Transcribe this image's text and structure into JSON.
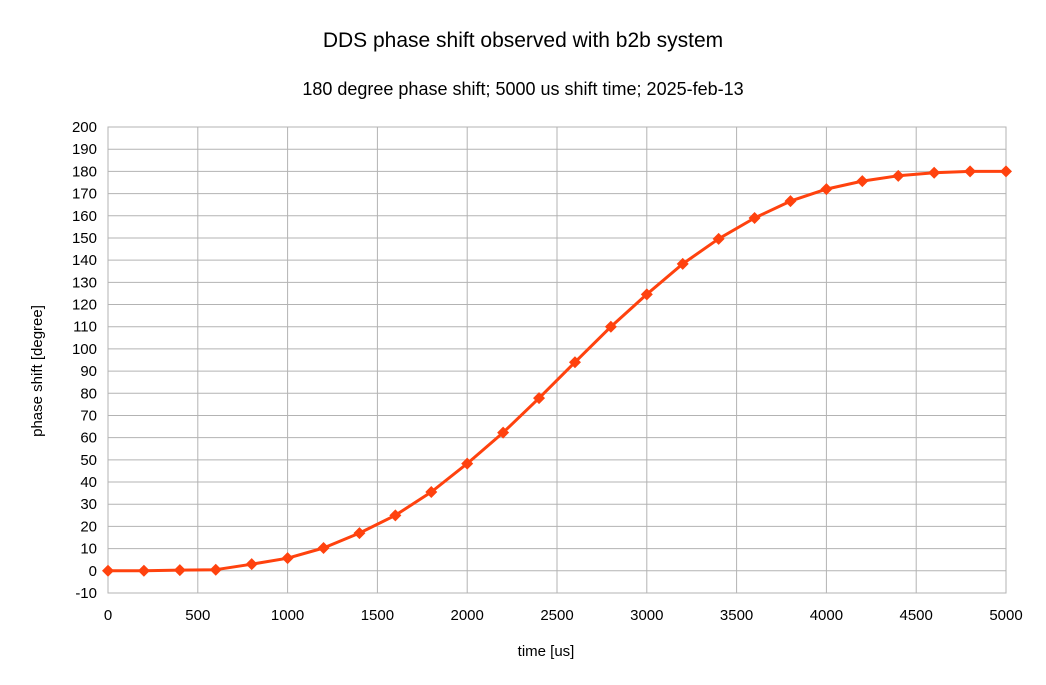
{
  "chart_data": {
    "type": "line",
    "title": "DDS phase shift observed with b2b system",
    "subtitle": "180 degree phase shift; 5000 us shift time; 2025-feb-13",
    "xlabel": "time [us]",
    "ylabel": "phase shift [degree]",
    "xlim": [
      0,
      5000
    ],
    "ylim": [
      -10,
      200
    ],
    "x_ticks": [
      0,
      500,
      1000,
      1500,
      2000,
      2500,
      3000,
      3500,
      4000,
      4500,
      5000
    ],
    "y_ticks": [
      -10,
      0,
      10,
      20,
      30,
      40,
      50,
      60,
      70,
      80,
      90,
      100,
      110,
      120,
      130,
      140,
      150,
      160,
      170,
      180,
      190,
      200
    ],
    "grid": true,
    "series": [
      {
        "color": "#ff420e",
        "marker": "diamond",
        "x": [
          0,
          200,
          400,
          600,
          800,
          1000,
          1200,
          1400,
          1600,
          1800,
          2000,
          2200,
          2400,
          2600,
          2800,
          3000,
          3200,
          3400,
          3600,
          3800,
          4000,
          4200,
          4400,
          4600,
          4800,
          5000
        ],
        "y": [
          0,
          0,
          0.3,
          0.5,
          3,
          5.7,
          10.3,
          17,
          25,
          35.5,
          48.3,
          62.3,
          77.8,
          94,
          110,
          124.6,
          138.3,
          149.6,
          159,
          166.6,
          172,
          175.6,
          178,
          179.4,
          180,
          180
        ]
      }
    ]
  }
}
